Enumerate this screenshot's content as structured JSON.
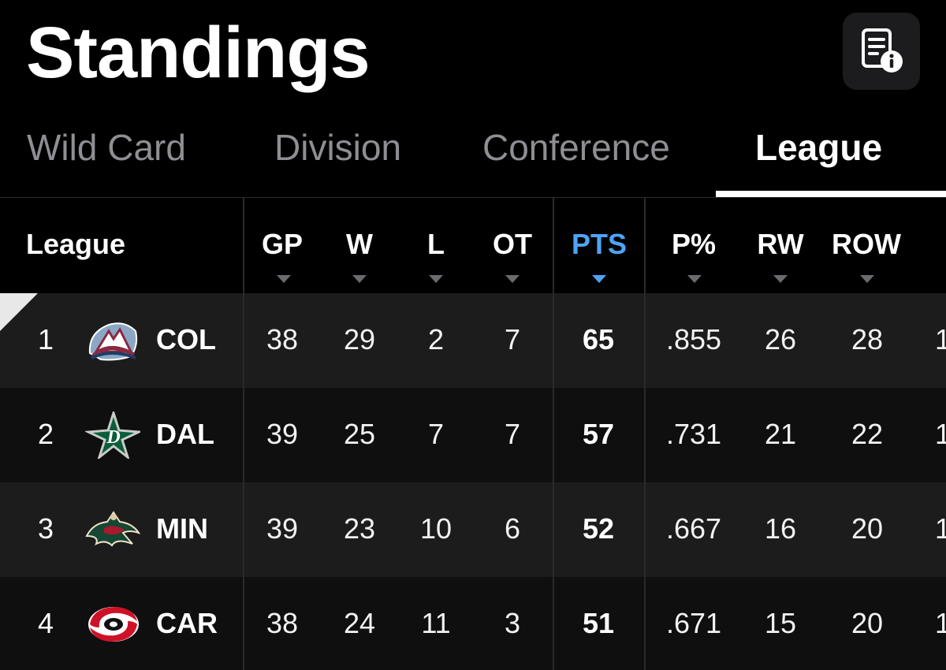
{
  "header": {
    "title": "Standings"
  },
  "tabs": [
    {
      "label": "Wild Card"
    },
    {
      "label": "Division"
    },
    {
      "label": "Conference"
    },
    {
      "label": "League"
    }
  ],
  "active_tab": "League",
  "table": {
    "group_label": "League",
    "columns": [
      "GP",
      "W",
      "L",
      "OT",
      "PTS",
      "P%",
      "RW",
      "ROW"
    ],
    "sorted_column": "PTS",
    "rows": [
      {
        "rank": "1",
        "team": "COL",
        "logo": "avalanche-logo-icon",
        "gp": "38",
        "w": "29",
        "l": "2",
        "ot": "7",
        "pts": "65",
        "pct": ".855",
        "rw": "26",
        "row": "28",
        "next": "1"
      },
      {
        "rank": "2",
        "team": "DAL",
        "logo": "stars-logo-icon",
        "gp": "39",
        "w": "25",
        "l": "7",
        "ot": "7",
        "pts": "57",
        "pct": ".731",
        "rw": "21",
        "row": "22",
        "next": "1"
      },
      {
        "rank": "3",
        "team": "MIN",
        "logo": "wild-logo-icon",
        "gp": "39",
        "w": "23",
        "l": "10",
        "ot": "6",
        "pts": "52",
        "pct": ".667",
        "rw": "16",
        "row": "20",
        "next": "1"
      },
      {
        "rank": "4",
        "team": "CAR",
        "logo": "hurricanes-logo-icon",
        "gp": "38",
        "w": "24",
        "l": "11",
        "ot": "3",
        "pts": "51",
        "pct": ".671",
        "rw": "15",
        "row": "20",
        "next": "1"
      }
    ]
  },
  "colors": {
    "accent": "#4fa3f7",
    "background": "#000000",
    "row_alt": "#1c1c1c"
  }
}
